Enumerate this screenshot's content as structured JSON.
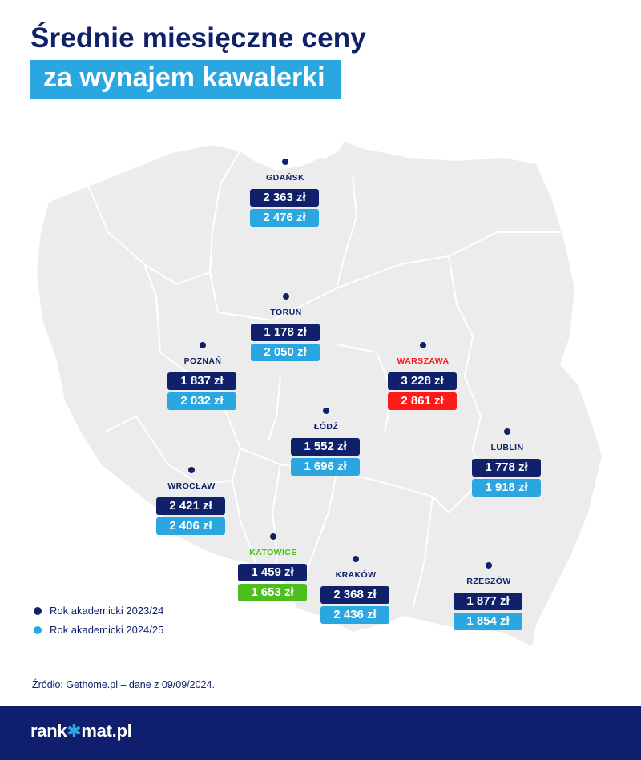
{
  "title": {
    "line1": "Średnie miesięczne ceny",
    "line2": "za wynajem kawalerki"
  },
  "colors": {
    "navy": "#10216a",
    "light_blue": "#2aa6e0",
    "map_fill": "#ececec",
    "highlight_red": "#ff1a1a",
    "highlight_green": "#4cbf1e",
    "footer_bg": "#0f1f6e"
  },
  "cities": [
    {
      "name": "Gdańsk",
      "price_2023": "2 363 zł",
      "price_2024": "2 476 zł",
      "highlight": "none"
    },
    {
      "name": "Toruń",
      "price_2023": "1 178 zł",
      "price_2024": "2 050 zł",
      "highlight": "none"
    },
    {
      "name": "Poznań",
      "price_2023": "1 837 zł",
      "price_2024": "2 032 zł",
      "highlight": "none"
    },
    {
      "name": "Warszawa",
      "price_2023": "3 228 zł",
      "price_2024": "2 861 zł",
      "highlight": "red"
    },
    {
      "name": "Łódź",
      "price_2023": "1 552 zł",
      "price_2024": "1 696 zł",
      "highlight": "none"
    },
    {
      "name": "Lublin",
      "price_2023": "1 778 zł",
      "price_2024": "1 918 zł",
      "highlight": "none"
    },
    {
      "name": "Wrocław",
      "price_2023": "2 421 zł",
      "price_2024": "2 406 zł",
      "highlight": "none"
    },
    {
      "name": "Katowice",
      "price_2023": "1 459 zł",
      "price_2024": "1 653 zł",
      "highlight": "green"
    },
    {
      "name": "Kraków",
      "price_2023": "2 368 zł",
      "price_2024": "2 436 zł",
      "highlight": "none"
    },
    {
      "name": "Rzeszów",
      "price_2023": "1 877 zł",
      "price_2024": "1 854 zł",
      "highlight": "none"
    }
  ],
  "legend": [
    {
      "label": "Rok akademicki 2023/24",
      "color": "#10216a"
    },
    {
      "label": "Rok akademicki 2024/25",
      "color": "#2aa6e0"
    }
  ],
  "source": "Źródło: Gethome.pl – dane z 09/09/2024.",
  "footer": {
    "logo_left": "rank",
    "logo_star": "✱",
    "logo_right": "mat.pl"
  }
}
